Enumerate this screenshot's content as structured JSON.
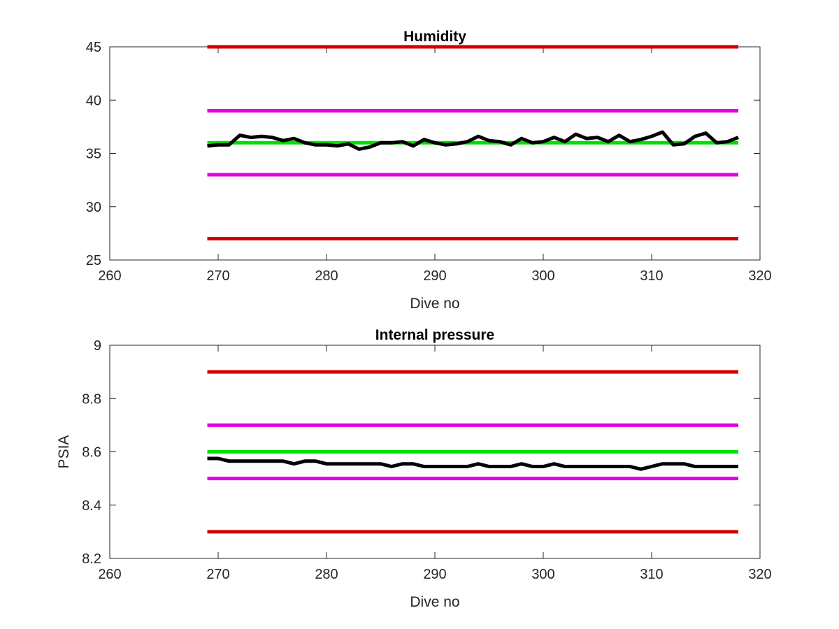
{
  "chart_data": [
    {
      "type": "line",
      "title": "Humidity",
      "xlabel": "Dive no",
      "ylabel": "",
      "xlim": [
        260,
        320
      ],
      "ylim": [
        25,
        45
      ],
      "xticks": [
        "260",
        "270",
        "280",
        "290",
        "300",
        "310",
        "320"
      ],
      "yticks": [
        "25",
        "30",
        "35",
        "40",
        "45"
      ],
      "grid": false,
      "reference_lines": [
        {
          "y": 45,
          "x": [
            269,
            318
          ],
          "color": "#d00000"
        },
        {
          "y": 39,
          "x": [
            269,
            318
          ],
          "color": "#e000e0"
        },
        {
          "y": 36,
          "x": [
            269,
            318
          ],
          "color": "#00e000"
        },
        {
          "y": 33,
          "x": [
            269,
            318
          ],
          "color": "#e000e0"
        },
        {
          "y": 27,
          "x": [
            269,
            318
          ],
          "color": "#d00000"
        }
      ],
      "series": [
        {
          "color": "#000000",
          "x": [
            269,
            270,
            271,
            272,
            273,
            274,
            275,
            276,
            277,
            278,
            279,
            280,
            281,
            282,
            283,
            284,
            285,
            286,
            287,
            288,
            289,
            290,
            291,
            292,
            293,
            294,
            295,
            296,
            297,
            298,
            299,
            300,
            301,
            302,
            303,
            304,
            305,
            306,
            307,
            308,
            309,
            310,
            311,
            312,
            313,
            314,
            315,
            316,
            317,
            318
          ],
          "y": [
            35.7,
            35.8,
            35.8,
            36.7,
            36.5,
            36.6,
            36.5,
            36.2,
            36.4,
            36.0,
            35.8,
            35.8,
            35.7,
            35.9,
            35.4,
            35.6,
            36.0,
            36.0,
            36.1,
            35.7,
            36.3,
            36.0,
            35.8,
            35.9,
            36.1,
            36.6,
            36.2,
            36.1,
            35.8,
            36.4,
            36.0,
            36.1,
            36.5,
            36.1,
            36.8,
            36.4,
            36.5,
            36.1,
            36.7,
            36.1,
            36.3,
            36.6,
            37.0,
            35.8,
            35.9,
            36.6,
            36.9,
            36.0,
            36.1,
            36.5
          ]
        }
      ]
    },
    {
      "type": "line",
      "title": "Internal pressure",
      "xlabel": "Dive no",
      "ylabel": "PSIA",
      "xlim": [
        260,
        320
      ],
      "ylim": [
        8.2,
        9.0
      ],
      "xticks": [
        "260",
        "270",
        "280",
        "290",
        "300",
        "310",
        "320"
      ],
      "yticks": [
        "8.2",
        "8.4",
        "8.6",
        "8.8",
        "9"
      ],
      "grid": false,
      "reference_lines": [
        {
          "y": 8.9,
          "x": [
            269,
            318
          ],
          "color": "#d00000"
        },
        {
          "y": 8.7,
          "x": [
            269,
            318
          ],
          "color": "#e000e0"
        },
        {
          "y": 8.6,
          "x": [
            269,
            318
          ],
          "color": "#00e000"
        },
        {
          "y": 8.5,
          "x": [
            269,
            318
          ],
          "color": "#e000e0"
        },
        {
          "y": 8.3,
          "x": [
            269,
            318
          ],
          "color": "#d00000"
        }
      ],
      "series": [
        {
          "color": "#000000",
          "x": [
            269,
            270,
            271,
            272,
            273,
            274,
            275,
            276,
            277,
            278,
            279,
            280,
            281,
            282,
            283,
            284,
            285,
            286,
            287,
            288,
            289,
            290,
            291,
            292,
            293,
            294,
            295,
            296,
            297,
            298,
            299,
            300,
            301,
            302,
            303,
            304,
            305,
            306,
            307,
            308,
            309,
            310,
            311,
            312,
            313,
            314,
            315,
            316,
            317,
            318
          ],
          "y": [
            8.575,
            8.575,
            8.565,
            8.565,
            8.565,
            8.565,
            8.565,
            8.565,
            8.555,
            8.565,
            8.565,
            8.555,
            8.555,
            8.555,
            8.555,
            8.555,
            8.555,
            8.545,
            8.555,
            8.555,
            8.545,
            8.545,
            8.545,
            8.545,
            8.545,
            8.555,
            8.545,
            8.545,
            8.545,
            8.555,
            8.545,
            8.545,
            8.555,
            8.545,
            8.545,
            8.545,
            8.545,
            8.545,
            8.545,
            8.545,
            8.535,
            8.545,
            8.555,
            8.555,
            8.555,
            8.545,
            8.545,
            8.545,
            8.545,
            8.545
          ]
        }
      ]
    }
  ]
}
